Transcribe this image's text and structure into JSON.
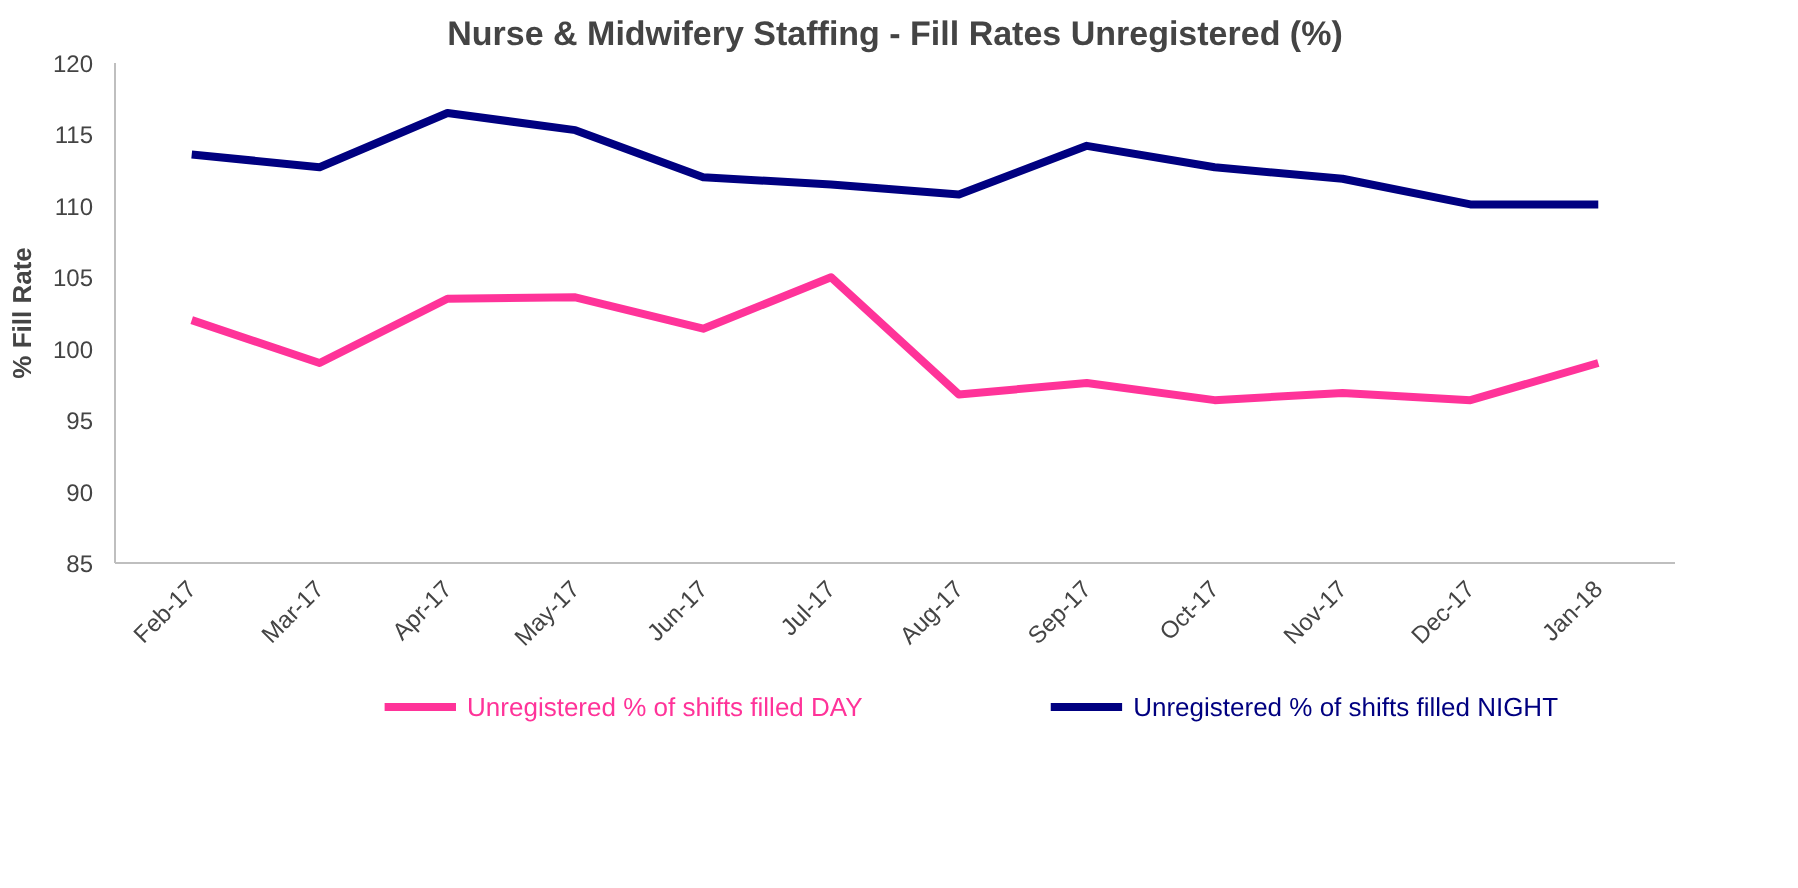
{
  "chart_data": {
    "type": "line",
    "title": "Nurse & Midwifery Staffing - Fill Rates Unregistered (%)",
    "ylabel": "% Fill Rate",
    "categories": [
      "Feb-17",
      "Mar-17",
      "Apr-17",
      "May-17",
      "Jun-17",
      "Jul-17",
      "Aug-17",
      "Sep-17",
      "Oct-17",
      "Nov-17",
      "Dec-17",
      "Jan-18"
    ],
    "series": [
      {
        "name": "Unregistered % of shifts filled DAY",
        "color": "#ff3399",
        "values": [
          102,
          99,
          103.5,
          103.6,
          101.4,
          105,
          96.8,
          97.6,
          96.4,
          96.9,
          96.4,
          99
        ]
      },
      {
        "name": "Unregistered % of shifts filled NIGHT",
        "color": "#000080",
        "values": [
          113.6,
          112.7,
          116.5,
          115.3,
          112,
          111.5,
          110.8,
          114.2,
          112.7,
          111.9,
          110.1,
          110.1
        ]
      }
    ],
    "ylim": [
      85,
      120
    ],
    "yticks": [
      85,
      90,
      95,
      100,
      105,
      110,
      115,
      120
    ],
    "grid": false,
    "legend": "bottom",
    "marker": "none",
    "line_style": "solid"
  }
}
